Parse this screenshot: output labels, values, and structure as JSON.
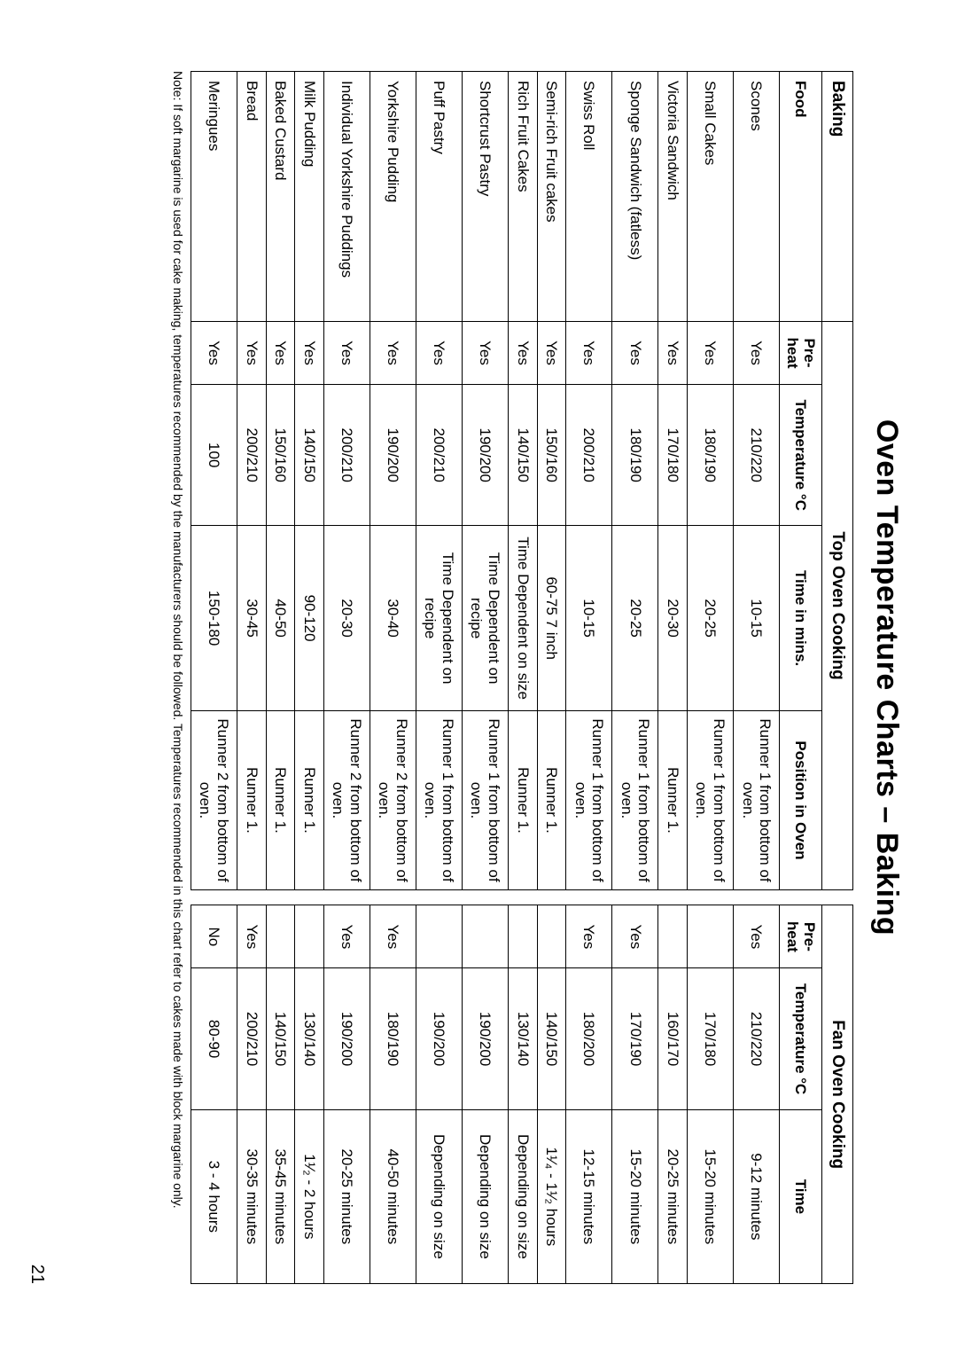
{
  "page_number": "21",
  "title": "Oven Temperature Charts – Baking",
  "section_label": "Baking",
  "top_oven_label": "Top Oven Cooking",
  "fan_oven_label": "Fan Oven Cooking",
  "headers": {
    "food": "Food",
    "preheat": "Pre-heat",
    "temp_c": "Temperature °C",
    "time_mins": "Time in mins.",
    "position": "Position in Oven",
    "temp_c_fan": "Temperature °C",
    "time": "Time"
  },
  "note": "Note: If soft margarine is used for cake making, temperatures recommended by the manufacturers should be followed. Temperatures recommended in this chart refer to cakes made with block margarine only.",
  "rows": [
    {
      "food": "Scones",
      "pre1": "Yes",
      "temp1": "210/220",
      "time1": "10-15",
      "pos": "Runner 1 from bottom of oven.",
      "pre2": "Yes",
      "temp2": "210/220",
      "time2": "9-12 minutes"
    },
    {
      "food": "Small Cakes",
      "pre1": "Yes",
      "temp1": "180/190",
      "time1": "20-25",
      "pos": "Runner 1 from bottom of oven.",
      "pre2": "",
      "temp2": "170/180",
      "time2": "15-20 minutes"
    },
    {
      "food": "Victoria Sandwich",
      "pre1": "Yes",
      "temp1": "170/180",
      "time1": "20-30",
      "pos": "Runner 1.",
      "pre2": "",
      "temp2": "160/170",
      "time2": "20-25 minutes"
    },
    {
      "food": "Sponge Sandwich (fatless)",
      "pre1": "Yes",
      "temp1": "180/190",
      "time1": "20-25",
      "pos": "Runner 1 from bottom of oven.",
      "pre2": "Yes",
      "temp2": "170/190",
      "time2": "15-20 minutes"
    },
    {
      "food": "Swiss Roll",
      "pre1": "Yes",
      "temp1": "200/210",
      "time1": "10-15",
      "pos": "Runner 1 from bottom of oven.",
      "pre2": "Yes",
      "temp2": "180/200",
      "time2": "12-15 minutes"
    },
    {
      "food": "Semi-rich Fruit cakes",
      "pre1": "Yes",
      "temp1": "150/160",
      "time1": "60-75   7 inch",
      "pos": "Runner 1.",
      "pre2": "",
      "temp2": "140/150",
      "time2": "1¹⁄₄ - 1¹⁄₂ hours"
    },
    {
      "food": "Rich Fruit Cakes",
      "pre1": "Yes",
      "temp1": "140/150",
      "time1": "Time Dependent on size",
      "pos": "Runner 1.",
      "pre2": "",
      "temp2": "130/140",
      "time2": "Depending on size"
    },
    {
      "food": "Shortcrust Pastry",
      "pre1": "Yes",
      "temp1": "190/200",
      "time1": "Time Dependent on recipe",
      "pos": "Runner 1 from bottom of oven.",
      "pre2": "",
      "temp2": "190/200",
      "time2": "Depending on size"
    },
    {
      "food": "Puff Pastry",
      "pre1": "Yes",
      "temp1": "200/210",
      "time1": "Time Dependent on recipe",
      "pos": "Runner 1 from bottom of oven.",
      "pre2": "",
      "temp2": "190/200",
      "time2": "Depending on size"
    },
    {
      "food": "Yorkshire Pudding",
      "pre1": "Yes",
      "temp1": "190/200",
      "time1": "30-40",
      "pos": "Runner 2 from bottom of oven.",
      "pre2": "Yes",
      "temp2": "180/190",
      "time2": "40-50 minutes"
    },
    {
      "food": "Individual Yorkshire Puddings",
      "pre1": "Yes",
      "temp1": "200/210",
      "time1": "20-30",
      "pos": "Runner 2 from bottom of oven.",
      "pre2": "Yes",
      "temp2": "190/200",
      "time2": "20-25 minutes"
    },
    {
      "food": "Milk Pudding",
      "pre1": "Yes",
      "temp1": "140/150",
      "time1": "90-120",
      "pos": "Runner 1.",
      "pre2": "",
      "temp2": "130/140",
      "time2": "1¹⁄₂ - 2 hours"
    },
    {
      "food": "Baked Custard",
      "pre1": "Yes",
      "temp1": "150/160",
      "time1": "40-50",
      "pos": "Runner 1.",
      "pre2": "",
      "temp2": "140/150",
      "time2": "35-45 minutes"
    },
    {
      "food": "Bread",
      "pre1": "Yes",
      "temp1": "200/210",
      "time1": "30-45",
      "pos": "Runner 1.",
      "pre2": "Yes",
      "temp2": "200/210",
      "time2": "30-35 minutes"
    },
    {
      "food": "Meringues",
      "pre1": "Yes",
      "temp1": "100",
      "time1": "150-180",
      "pos": "Runner 2 from bottom of oven.",
      "pre2": "No",
      "temp2": "80-90",
      "time2": "3 - 4 hours"
    }
  ]
}
